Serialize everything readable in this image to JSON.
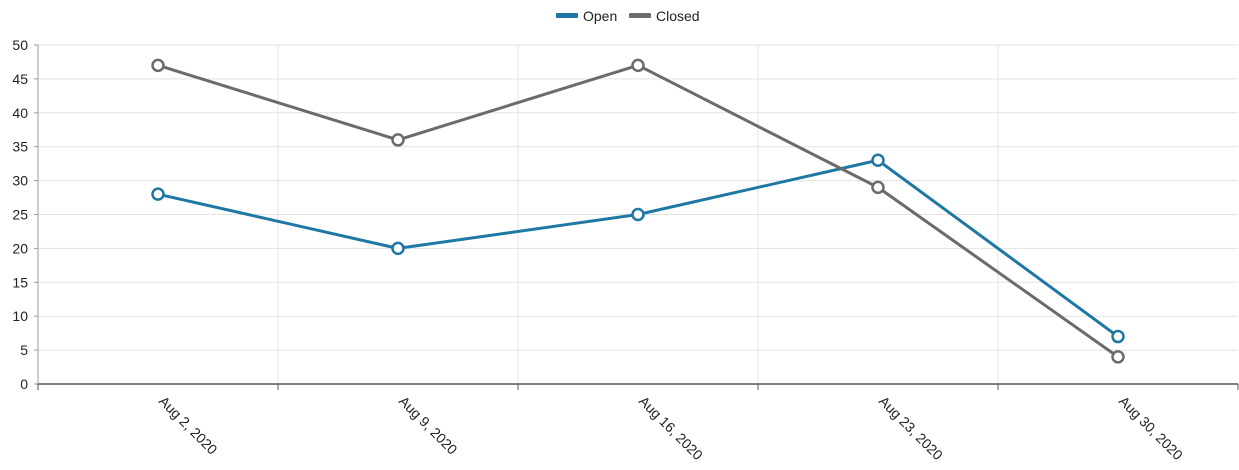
{
  "chart_data": {
    "type": "line",
    "categories": [
      "Aug 2, 2020",
      "Aug 9, 2020",
      "Aug 16, 2020",
      "Aug 23, 2020",
      "Aug 30, 2020"
    ],
    "series": [
      {
        "name": "Open",
        "color": "#1f78a4",
        "values": [
          28,
          20,
          25,
          33,
          7
        ]
      },
      {
        "name": "Closed",
        "color": "#6b6b6b",
        "values": [
          47,
          36,
          47,
          29,
          4
        ]
      }
    ],
    "ylim": [
      0,
      50
    ],
    "yticks": [
      0,
      5,
      10,
      15,
      20,
      25,
      30,
      35,
      40,
      45,
      50
    ],
    "grid": true,
    "legend_position": "top-center"
  }
}
